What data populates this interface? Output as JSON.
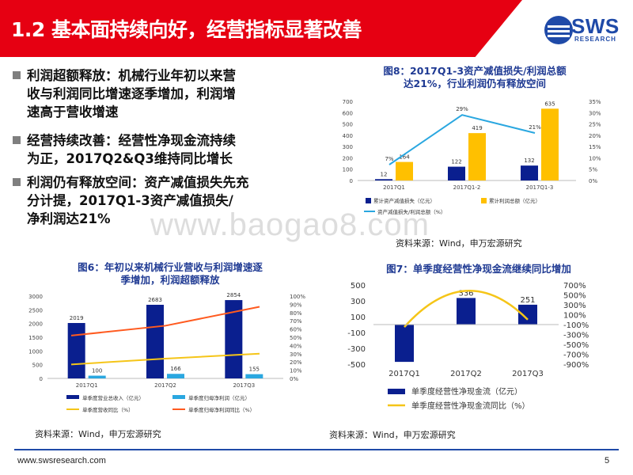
{
  "header": {
    "title": "1.2 基本面持续向好，经营指标显著改善",
    "logo_text": "SWS",
    "logo_sub": "RESEARCH"
  },
  "bullets": [
    {
      "lines": [
        "利润超额释放：机械行业年初以来营",
        "收与利润同比增速逐季增加，利润增",
        "速高于营收增速"
      ]
    },
    {
      "lines": [
        "经营持续改善：经营性净现金流持续",
        "为正，2017Q2&Q3维持同比增长"
      ]
    },
    {
      "lines": [
        "利润仍有释放空间：资产减值损失先充",
        "分计提，2017Q1-3资产减值损失/",
        "净利润达21%"
      ]
    }
  ],
  "watermark": "www.baogao8.com",
  "colors": {
    "red": "#e60012",
    "navy": "#1f3a93",
    "bar_navy": "#0a1f8f",
    "yellow": "#ffc000",
    "cyan": "#2aa7e0",
    "orange": "#ff5a1f",
    "gold": "#f5c518"
  },
  "charts": {
    "fig8": {
      "title_lines": [
        "图8：2017Q1-3资产减值损失/利润总额",
        "达21%，行业利润仍有释放空间"
      ],
      "source": "资料来源：Wind，申万宏源研究",
      "chart_data": {
        "type": "bar",
        "categories": [
          "2017Q1",
          "2017Q1-2",
          "2017Q1-3"
        ],
        "series": [
          {
            "name": "累计资产减值损失（亿元）",
            "values": [
              12,
              122,
              132
            ],
            "axis": "left",
            "kind": "bar"
          },
          {
            "name": "累计利润总额（亿元）",
            "values": [
              164,
              419,
              635
            ],
            "axis": "left",
            "kind": "bar"
          },
          {
            "name": "资产减值损失/利润总额（%）",
            "values": [
              7,
              29,
              21
            ],
            "axis": "right",
            "kind": "line"
          }
        ],
        "value_labels": {
          "累计资产减值损失（亿元）": [
            "12",
            "122",
            "132"
          ],
          "累计利润总额（亿元）": [
            "164",
            "419",
            "635"
          ],
          "资产减值损失/利润总额（%）": [
            "7%",
            "29%",
            "21%"
          ]
        },
        "ylim_left": [
          0,
          700
        ],
        "yticks_left": [
          "0",
          "100",
          "200",
          "300",
          "400",
          "500",
          "600",
          "700"
        ],
        "ylim_right": [
          0,
          35
        ],
        "yticks_right": [
          "0%",
          "5%",
          "10%",
          "15%",
          "20%",
          "25%",
          "30%",
          "35%"
        ],
        "legend": "bottom",
        "grid": false
      }
    },
    "fig6": {
      "title_lines": [
        "图6：年初以来机械行业营收与利润增速逐",
        "季增加，利润超额释放"
      ],
      "source": "资料来源：Wind，申万宏源研究",
      "chart_data": {
        "type": "bar",
        "categories": [
          "2017Q1",
          "2017Q2",
          "2017Q3"
        ],
        "series": [
          {
            "name": "单季度营业总收入（亿元）",
            "values": [
              2019,
              2683,
              2854
            ],
            "axis": "left",
            "kind": "bar"
          },
          {
            "name": "单季度归母净利润（亿元）",
            "values": [
              100,
              166,
              155
            ],
            "axis": "left",
            "kind": "bar"
          },
          {
            "name": "单季度营收同比（%）",
            "values": [
              17,
              24,
              30
            ],
            "axis": "right",
            "kind": "line"
          },
          {
            "name": "单季度归母净利润同比（%）",
            "values": [
              52,
              64,
              87
            ],
            "axis": "right",
            "kind": "line"
          }
        ],
        "value_labels": {
          "单季度营业总收入（亿元）": [
            "2019",
            "2683",
            "2854"
          ],
          "单季度归母净利润（亿元）": [
            "100",
            "166",
            "155"
          ]
        },
        "ylim_left": [
          0,
          3000
        ],
        "yticks_left": [
          "0",
          "500",
          "1000",
          "1500",
          "2000",
          "2500",
          "3000"
        ],
        "ylim_right": [
          0,
          100
        ],
        "yticks_right": [
          "0%",
          "10%",
          "20%",
          "30%",
          "40%",
          "50%",
          "60%",
          "70%",
          "80%",
          "90%",
          "100%"
        ],
        "legend": "bottom",
        "grid": false
      }
    },
    "fig7": {
      "title": "图7：单季度经营性净现金流继续同比增加",
      "source": "资料来源：Wind，申万宏源研究",
      "chart_data": {
        "type": "bar",
        "categories": [
          "2017Q1",
          "2017Q2",
          "2017Q3"
        ],
        "series": [
          {
            "name": "单季度经营性净现金流（亿元）",
            "values": [
              -471,
              336,
              251
            ],
            "axis": "left",
            "kind": "bar"
          },
          {
            "name": "单季度经营性净现金流同比（%）",
            "values": [
              -150,
              600,
              0
            ],
            "axis": "right",
            "kind": "line"
          }
        ],
        "value_labels": {
          "单季度经营性净现金流（亿元）": [
            "-471",
            "336",
            "251"
          ]
        },
        "ylim_left": [
          -500,
          500
        ],
        "yticks_left": [
          "500",
          "300",
          "100",
          "-100",
          "-300",
          "-500"
        ],
        "ylim_right": [
          -900,
          700
        ],
        "yticks_right": [
          "700%",
          "500%",
          "300%",
          "100%",
          "-100%",
          "-300%",
          "-500%",
          "-700%",
          "-900%"
        ],
        "legend": "bottom",
        "grid": false
      }
    }
  },
  "footer": {
    "url": "www.swsresearch.com",
    "page_number": "5"
  }
}
